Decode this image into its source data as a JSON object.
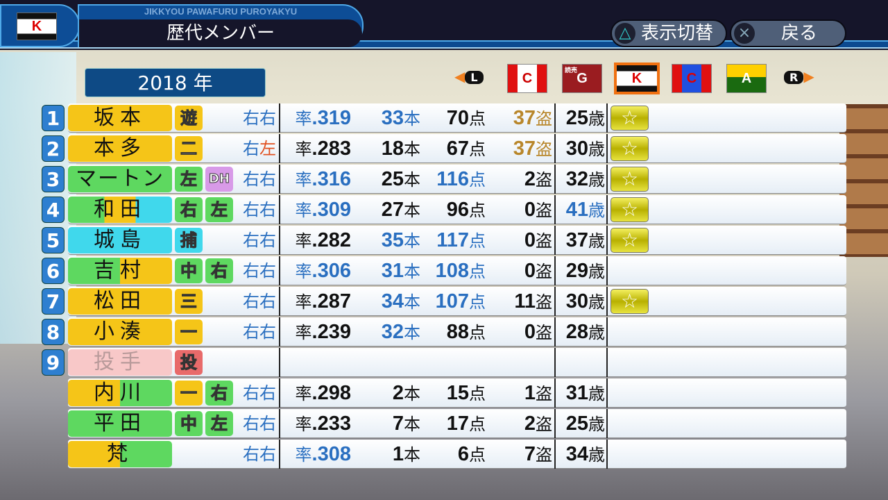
{
  "header": {
    "subtitle": "JIKKYOU PAWAFURU PUROYAKYU",
    "title": "歴代メンバー",
    "team_logo": "K"
  },
  "buttons": {
    "toggle": {
      "icon": "△",
      "label": "表示切替"
    },
    "back": {
      "icon": "×",
      "label": "戻る"
    }
  },
  "year": "2018 年",
  "team_selector": {
    "left": "L",
    "right": "R",
    "selected": 2,
    "teams": [
      {
        "letter": "C",
        "colors": [
          "#e01010",
          "#ffffff",
          "#e01010"
        ],
        "fg": "#c00"
      },
      {
        "letter": "G",
        "top": "読売",
        "colors": [
          "#9a1c20",
          "#9a1c20",
          "#9a1c20"
        ],
        "fg": "#fff"
      },
      {
        "letter": "K",
        "colors": [
          "#111111",
          "#ffffff",
          "#111111"
        ],
        "fg": "#d00"
      },
      {
        "letter": "C",
        "colors": [
          "#e01010",
          "#2050e0",
          "#e01010"
        ],
        "fg": "#d00"
      },
      {
        "letter": "A",
        "colors": [
          "#ffd000",
          "#1a6a10",
          "#1a6a10"
        ],
        "fg": "#fff"
      }
    ]
  },
  "colors": {
    "blue": "#2a6fc0",
    "black": "#111111",
    "gold": "#b8862a",
    "orange": "#e05020",
    "yellow": "#f5c518",
    "green": "#5ed860",
    "cyan": "#40d8ec",
    "purple": "#d89ae8",
    "red": "#e86a6a",
    "pink": "#f8c8c8"
  },
  "rows": [
    {
      "num": "1",
      "name": "坂本",
      "bg": [
        "#f5c518",
        "#f5c518"
      ],
      "pos": [
        {
          "t": "遊",
          "c": "#f5c518"
        }
      ],
      "hand": [
        [
          "右",
          "#2a6fc0"
        ],
        [
          "右",
          "#2a6fc0"
        ]
      ],
      "avg": [
        ".319",
        "#2a6fc0"
      ],
      "hr": [
        "33",
        "#2a6fc0"
      ],
      "rbi": [
        "70",
        "#111111"
      ],
      "sb": [
        "37",
        "#b8862a"
      ],
      "age": [
        "25",
        "#111111"
      ],
      "star": true
    },
    {
      "num": "2",
      "name": "本多",
      "bg": [
        "#f5c518",
        "#f5c518"
      ],
      "pos": [
        {
          "t": "二",
          "c": "#f5c518"
        }
      ],
      "hand": [
        [
          "右",
          "#2a6fc0"
        ],
        [
          "左",
          "#e05020"
        ]
      ],
      "avg": [
        ".283",
        "#111111"
      ],
      "hr": [
        "18",
        "#111111"
      ],
      "rbi": [
        "67",
        "#111111"
      ],
      "sb": [
        "37",
        "#b8862a"
      ],
      "age": [
        "30",
        "#111111"
      ],
      "star": true
    },
    {
      "num": "3",
      "name": "マートン",
      "bg": [
        "#5ed860",
        "#5ed860"
      ],
      "pos": [
        {
          "t": "左",
          "c": "#5ed860"
        },
        {
          "t": "DH",
          "c": "#d89ae8"
        }
      ],
      "hand": [
        [
          "右",
          "#2a6fc0"
        ],
        [
          "右",
          "#2a6fc0"
        ]
      ],
      "avg": [
        ".316",
        "#2a6fc0"
      ],
      "hr": [
        "25",
        "#111111"
      ],
      "rbi": [
        "116",
        "#2a6fc0"
      ],
      "sb": [
        "2",
        "#111111"
      ],
      "age": [
        "32",
        "#111111"
      ],
      "star": true
    },
    {
      "num": "4",
      "name": "和田",
      "bg": [
        "#5ed860",
        "#f5c518",
        "#40d8ec"
      ],
      "pos": [
        {
          "t": "右",
          "c": "#5ed860"
        },
        {
          "t": "左",
          "c": "#5ed860"
        }
      ],
      "hand": [
        [
          "右",
          "#2a6fc0"
        ],
        [
          "右",
          "#2a6fc0"
        ]
      ],
      "avg": [
        ".309",
        "#2a6fc0"
      ],
      "hr": [
        "27",
        "#111111"
      ],
      "rbi": [
        "96",
        "#111111"
      ],
      "sb": [
        "0",
        "#111111"
      ],
      "age": [
        "41",
        "#2a6fc0"
      ],
      "star": true
    },
    {
      "num": "5",
      "name": "城島",
      "bg": [
        "#40d8ec",
        "#40d8ec"
      ],
      "pos": [
        {
          "t": "捕",
          "c": "#40d8ec"
        }
      ],
      "hand": [
        [
          "右",
          "#2a6fc0"
        ],
        [
          "右",
          "#2a6fc0"
        ]
      ],
      "avg": [
        ".282",
        "#111111"
      ],
      "hr": [
        "35",
        "#2a6fc0"
      ],
      "rbi": [
        "117",
        "#2a6fc0"
      ],
      "sb": [
        "0",
        "#111111"
      ],
      "age": [
        "37",
        "#111111"
      ],
      "star": true
    },
    {
      "num": "6",
      "name": "吉村",
      "bg": [
        "#5ed860",
        "#f5c518"
      ],
      "pos": [
        {
          "t": "中",
          "c": "#5ed860"
        },
        {
          "t": "右",
          "c": "#5ed860"
        }
      ],
      "hand": [
        [
          "右",
          "#2a6fc0"
        ],
        [
          "右",
          "#2a6fc0"
        ]
      ],
      "avg": [
        ".306",
        "#2a6fc0"
      ],
      "hr": [
        "31",
        "#2a6fc0"
      ],
      "rbi": [
        "108",
        "#2a6fc0"
      ],
      "sb": [
        "0",
        "#111111"
      ],
      "age": [
        "29",
        "#111111"
      ],
      "star": false
    },
    {
      "num": "7",
      "name": "松田",
      "bg": [
        "#f5c518",
        "#f5c518"
      ],
      "pos": [
        {
          "t": "三",
          "c": "#f5c518"
        }
      ],
      "hand": [
        [
          "右",
          "#2a6fc0"
        ],
        [
          "右",
          "#2a6fc0"
        ]
      ],
      "avg": [
        ".287",
        "#111111"
      ],
      "hr": [
        "34",
        "#2a6fc0"
      ],
      "rbi": [
        "107",
        "#2a6fc0"
      ],
      "sb": [
        "11",
        "#111111"
      ],
      "age": [
        "30",
        "#111111"
      ],
      "star": true
    },
    {
      "num": "8",
      "name": "小湊",
      "bg": [
        "#f5c518",
        "#f5c518"
      ],
      "pos": [
        {
          "t": "一",
          "c": "#f5c518"
        }
      ],
      "hand": [
        [
          "右",
          "#2a6fc0"
        ],
        [
          "右",
          "#2a6fc0"
        ]
      ],
      "avg": [
        ".239",
        "#111111"
      ],
      "hr": [
        "32",
        "#2a6fc0"
      ],
      "rbi": [
        "88",
        "#111111"
      ],
      "sb": [
        "0",
        "#111111"
      ],
      "age": [
        "28",
        "#111111"
      ],
      "star": false
    },
    {
      "num": "9",
      "name": "投手",
      "bg": [
        "#f8c8c8",
        "#f8c8c8"
      ],
      "pitcher": true,
      "pos": [
        {
          "t": "投",
          "c": "#e86a6a"
        }
      ],
      "hand": [],
      "star": false
    },
    {
      "num": "",
      "name": "内川",
      "bg": [
        "#f5c518",
        "#5ed860"
      ],
      "pos": [
        {
          "t": "一",
          "c": "#f5c518"
        },
        {
          "t": "右",
          "c": "#5ed860"
        }
      ],
      "hand": [
        [
          "右",
          "#2a6fc0"
        ],
        [
          "右",
          "#2a6fc0"
        ]
      ],
      "avg": [
        ".298",
        "#111111"
      ],
      "hr": [
        "2",
        "#111111"
      ],
      "rbi": [
        "15",
        "#111111"
      ],
      "sb": [
        "1",
        "#111111"
      ],
      "age": [
        "31",
        "#111111"
      ],
      "star": false
    },
    {
      "num": "",
      "name": "平田",
      "bg": [
        "#5ed860",
        "#5ed860"
      ],
      "pos": [
        {
          "t": "中",
          "c": "#5ed860"
        },
        {
          "t": "左",
          "c": "#5ed860"
        }
      ],
      "hand": [
        [
          "右",
          "#2a6fc0"
        ],
        [
          "右",
          "#2a6fc0"
        ]
      ],
      "avg": [
        ".233",
        "#111111"
      ],
      "hr": [
        "7",
        "#111111"
      ],
      "rbi": [
        "17",
        "#111111"
      ],
      "sb": [
        "2",
        "#111111"
      ],
      "age": [
        "25",
        "#111111"
      ],
      "star": false
    },
    {
      "num": "",
      "name": "梵",
      "bg": [
        "#f5c518",
        "#5ed860"
      ],
      "pos": [],
      "hand": [
        [
          "右",
          "#2a6fc0"
        ],
        [
          "右",
          "#2a6fc0"
        ]
      ],
      "avg": [
        ".308",
        "#2a6fc0"
      ],
      "hr": [
        "1",
        "#111111"
      ],
      "rbi": [
        "6",
        "#111111"
      ],
      "sb": [
        "7",
        "#111111"
      ],
      "age": [
        "34",
        "#111111"
      ],
      "star": false
    }
  ],
  "units": {
    "avg": "率",
    "hr": "本",
    "rbi": "点",
    "sb": "盗",
    "age": "歳",
    "star": "☆"
  }
}
